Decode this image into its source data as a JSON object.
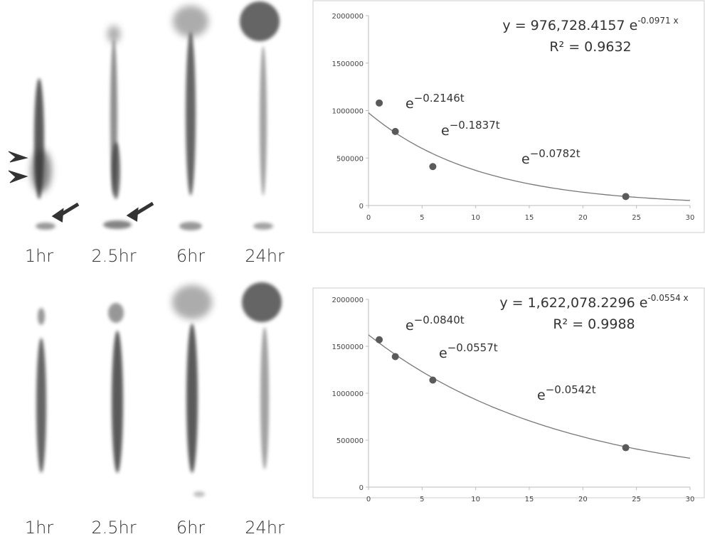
{
  "image_panels": [
    {
      "labels": [
        "1hr",
        "2.5hr",
        "6hr",
        "24hr"
      ]
    },
    {
      "labels": [
        "1hr",
        "2.5hr",
        "6hr",
        "24hr"
      ]
    }
  ],
  "chart_data": [
    {
      "type": "scatter",
      "x": [
        1,
        2.5,
        6,
        24
      ],
      "values": [
        1080000,
        780000,
        410000,
        95000
      ],
      "color": "#5a5a5a",
      "xlim": [
        0,
        30
      ],
      "xticks": [
        0,
        5,
        10,
        15,
        20,
        25,
        30
      ],
      "ylim": [
        0,
        2000000
      ],
      "yticks": [
        0,
        500000,
        1000000,
        1500000,
        2000000
      ],
      "fit": {
        "coefficient": 976728.4157,
        "rate": -0.0971,
        "color": "#777777"
      },
      "equation": {
        "base": "y = 976,728.4157 e",
        "exponent": "-0.0971 x"
      },
      "r_squared": "R² = 0.9632",
      "annotations": [
        {
          "base": "e",
          "exponent": "−0.2146t"
        },
        {
          "base": "e",
          "exponent": "−0.1837t"
        },
        {
          "base": "e",
          "exponent": "−0.0782t"
        }
      ]
    },
    {
      "type": "scatter",
      "x": [
        1,
        2.5,
        6,
        24
      ],
      "values": [
        1570000,
        1390000,
        1140000,
        420000
      ],
      "color": "#5a5a5a",
      "xlim": [
        0,
        30
      ],
      "xticks": [
        0,
        5,
        10,
        15,
        20,
        25,
        30
      ],
      "ylim": [
        0,
        2000000
      ],
      "yticks": [
        0,
        500000,
        1000000,
        1500000,
        2000000
      ],
      "fit": {
        "coefficient": 1622078.2296,
        "rate": -0.0554,
        "color": "#777777"
      },
      "equation": {
        "base": "y = 1,622,078.2296 e",
        "exponent": "-0.0554 x"
      },
      "r_squared": "R² = 0.9988",
      "annotations": [
        {
          "base": "e",
          "exponent": "−0.0840t"
        },
        {
          "base": "e",
          "exponent": "−0.0557t"
        },
        {
          "base": "e",
          "exponent": "−0.0542t"
        }
      ]
    }
  ]
}
